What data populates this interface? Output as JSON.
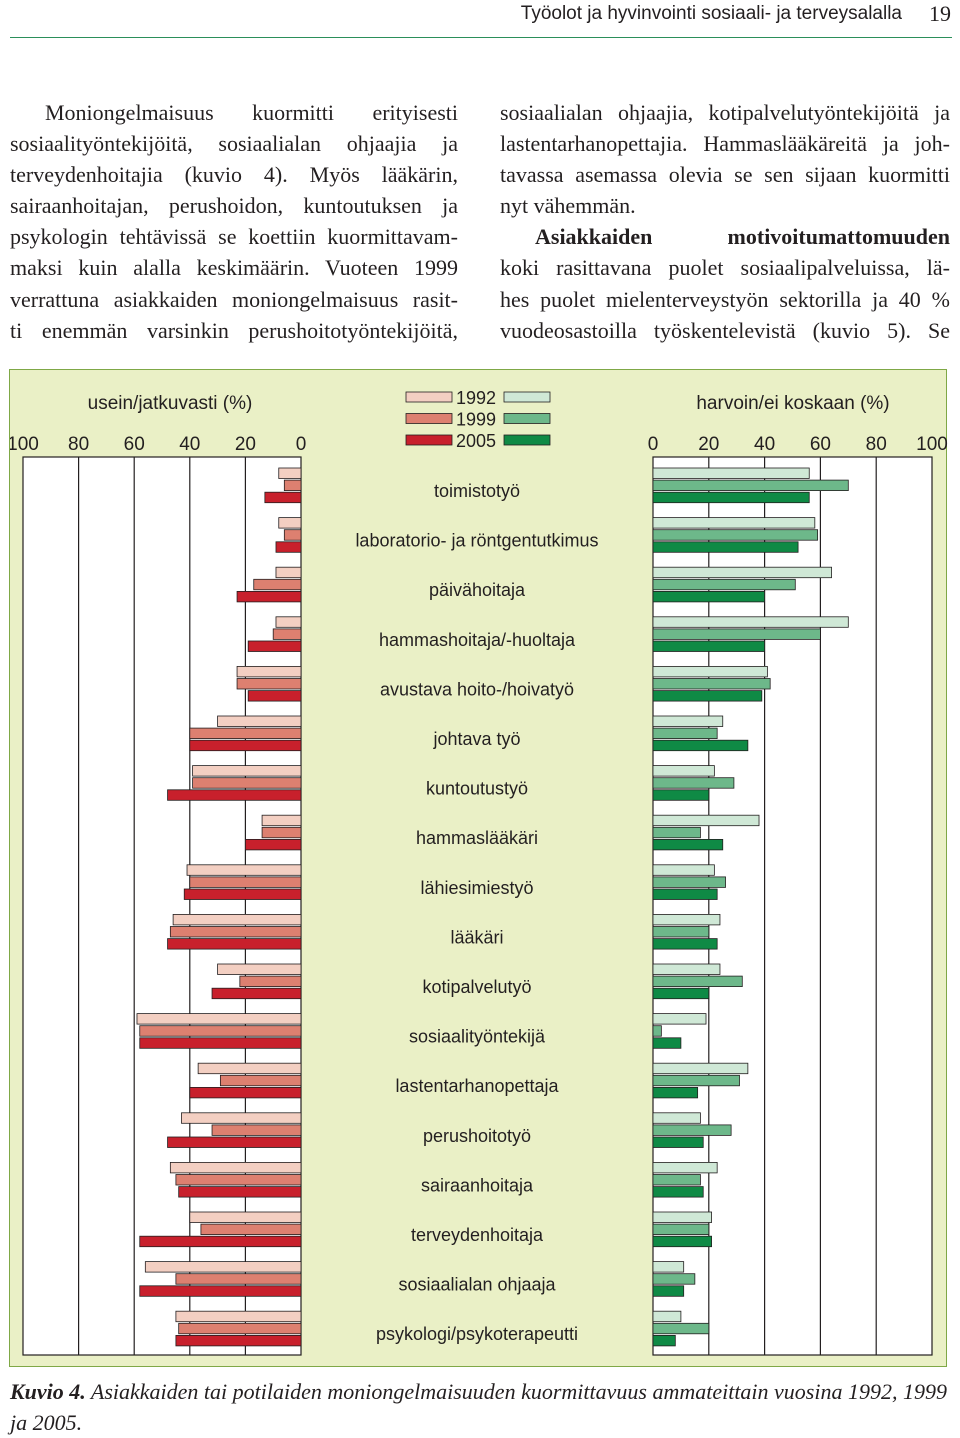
{
  "header": {
    "title": "Työolot ja hyvinvointi sosiaali- ja terveysalalla",
    "page_number": "19"
  },
  "text": {
    "left_lines": [
      "Moniongelmaisuus kuormitti erityisesti",
      "sosiaalityöntekijöitä, sosiaalialan ohjaajia ja",
      "terveydenhoitajia (kuvio 4). Myös lääkärin,",
      "sairaanhoitajan, perushoidon, kuntoutuksen ja",
      "psykologin tehtävissä se koettiin kuormittavam-",
      "maksi kuin alalla keskimäärin. Vuoteen 1999",
      "verrattuna asiakkaiden moniongelmaisuus rasit-",
      "ti enemmän varsinkin perushoitotyöntekijöitä,"
    ],
    "right_lines_1": [
      "sosiaalialan ohjaajia, kotipalvelutyöntekijöitä ja",
      "lastentarhanopettajia. Hammaslääkäreitä ja joh-",
      "tavassa asemassa olevia se sen sijaan kuormitti",
      "nyt vähemmän."
    ],
    "right_bold": "Asiakkaiden motivoitumattomuuden",
    "right_lines_2": [
      "koki rasittavana puolet sosiaalipalveluissa, lä-",
      "hes puolet mielenterveystyön sektorilla ja 40 %",
      "vuodeosastoilla työskentelevistä (kuvio 5). Se"
    ]
  },
  "caption": {
    "label": "Kuvio 4.",
    "text": "Asiakkaiden tai potilaiden moniongelmaisuuden kuormittavuus ammateittain vuosina 1992, 1999 ja 2005."
  },
  "colors": {
    "left": [
      "#f3cfc2",
      "#dd8070",
      "#c8202c"
    ],
    "right": [
      "#cfe8d6",
      "#6db88a",
      "#0f8a45"
    ],
    "background": "#eaf0c6",
    "border": "#7fa846"
  },
  "chart_data": {
    "type": "bar",
    "left_title": "usein/jatkuvasti (%)",
    "right_title": "harvoin/ei koskaan (%)",
    "left_ticks": [
      "100",
      "80",
      "60",
      "40",
      "20",
      "0"
    ],
    "right_ticks": [
      "0",
      "20",
      "40",
      "60",
      "80",
      "100"
    ],
    "xlim": [
      0,
      100
    ],
    "legend": [
      "1992",
      "1999",
      "2005"
    ],
    "categories": [
      "toimistotyö",
      "laboratorio- ja röntgentutkimus",
      "päivähoitaja",
      "hammashoitaja/-huoltaja",
      "avustava hoito-/hoivatyö",
      "johtava työ",
      "kuntoutustyö",
      "hammaslääkäri",
      "lähiesimiestyö",
      "lääkäri",
      "kotipalvelutyö",
      "sosiaalityöntekijä",
      "lastentarhanopettaja",
      "perushoitotyö",
      "sairaanhoitaja",
      "terveydenhoitaja",
      "sosiaalialan ohjaaja",
      "psykologi/psykoterapeutti"
    ],
    "left_series": [
      {
        "name": "1992",
        "values": [
          8,
          8,
          9,
          9,
          23,
          30,
          39,
          14,
          41,
          46,
          30,
          59,
          37,
          43,
          47,
          40,
          56,
          45
        ]
      },
      {
        "name": "1999",
        "values": [
          6,
          6,
          17,
          10,
          23,
          40,
          39,
          14,
          40,
          47,
          22,
          58,
          29,
          32,
          45,
          36,
          45,
          44
        ]
      },
      {
        "name": "2005",
        "values": [
          13,
          9,
          23,
          19,
          19,
          40,
          48,
          20,
          42,
          48,
          32,
          58,
          40,
          48,
          44,
          58,
          58,
          45
        ]
      }
    ],
    "right_series": [
      {
        "name": "1992",
        "values": [
          56,
          58,
          64,
          70,
          41,
          25,
          22,
          38,
          22,
          24,
          24,
          19,
          34,
          17,
          23,
          21,
          11,
          10
        ]
      },
      {
        "name": "1999",
        "values": [
          70,
          59,
          51,
          60,
          42,
          23,
          29,
          17,
          26,
          20,
          32,
          3,
          31,
          28,
          17,
          20,
          15,
          20
        ]
      },
      {
        "name": "2005",
        "values": [
          56,
          52,
          40,
          40,
          39,
          34,
          20,
          25,
          23,
          23,
          20,
          10,
          16,
          18,
          18,
          21,
          11,
          8
        ]
      }
    ]
  }
}
